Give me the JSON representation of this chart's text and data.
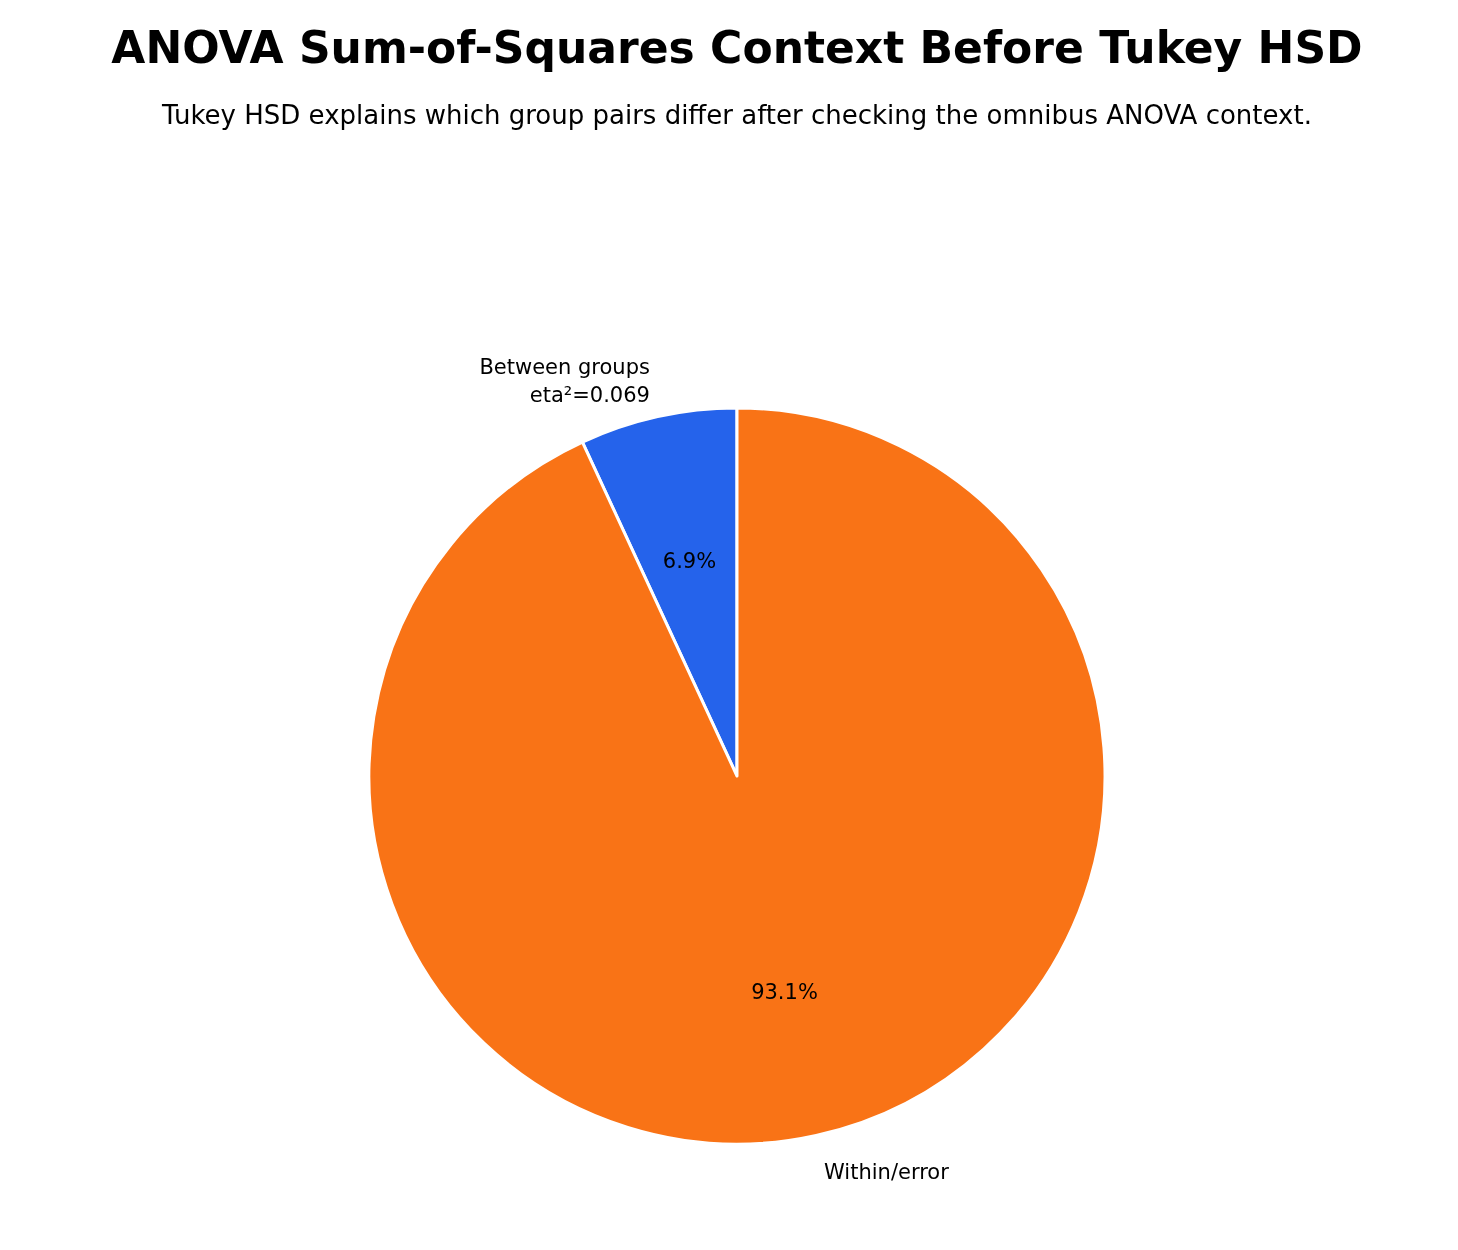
{
  "chart_data": {
    "type": "pie",
    "title": "ANOVA Sum-of-Squares Context Before Tukey HSD",
    "subtitle": "Tukey HSD explains which group pairs differ after checking the omnibus ANOVA context.",
    "categories": [
      "Between groups\neta²=0.069",
      "Within/error"
    ],
    "values": [
      6.9,
      93.1
    ],
    "value_labels": [
      "6.9%",
      "93.1%"
    ],
    "colors": [
      "#2563eb",
      "#f97316"
    ]
  }
}
